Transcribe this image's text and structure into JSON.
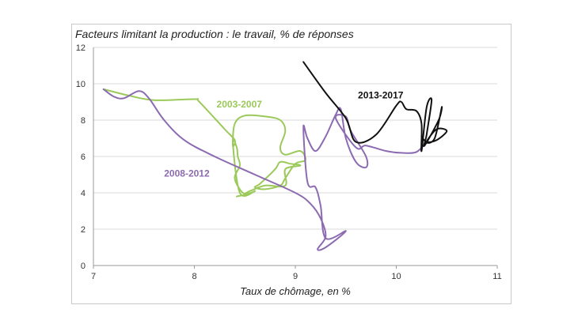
{
  "chart_data": {
    "type": "line",
    "title": "Facteurs limitant la production : le travail, % de réponses",
    "xlabel": "Taux de chômage, en %",
    "ylabel": "",
    "xlim": [
      7,
      11
    ],
    "ylim": [
      0,
      12
    ],
    "xticks": [
      "7",
      "8",
      "9",
      "10",
      "11"
    ],
    "yticks": [
      "0",
      "2",
      "4",
      "6",
      "8",
      "10",
      "12"
    ],
    "grid": "horizontal",
    "legend": "none",
    "colors": {
      "2003-2007": "#9bc95a",
      "2008-2012": "#8c6bb1",
      "2013-2017": "#111111"
    },
    "series": [
      {
        "name": "2003-2007",
        "label_at": [
          8.22,
          8.7
        ],
        "points": [
          [
            7.1,
            9.7
          ],
          [
            7.35,
            9.35
          ],
          [
            7.6,
            9.1
          ],
          [
            8.0,
            9.15
          ],
          [
            8.05,
            9.0
          ],
          [
            8.3,
            7.5
          ],
          [
            8.4,
            6.9
          ],
          [
            8.38,
            6.6
          ],
          [
            8.4,
            7.8
          ],
          [
            8.5,
            8.25
          ],
          [
            8.7,
            8.2
          ],
          [
            8.85,
            8.0
          ],
          [
            8.9,
            7.4
          ],
          [
            8.85,
            6.5
          ],
          [
            8.9,
            6.1
          ],
          [
            9.05,
            6.3
          ],
          [
            9.1,
            5.8
          ],
          [
            9.0,
            5.6
          ],
          [
            8.9,
            4.8
          ],
          [
            8.85,
            4.4
          ],
          [
            8.7,
            4.2
          ],
          [
            8.6,
            4.3
          ],
          [
            8.65,
            4.5
          ],
          [
            8.8,
            5.3
          ],
          [
            8.85,
            5.7
          ],
          [
            8.95,
            5.6
          ],
          [
            9.05,
            5.5
          ],
          [
            8.9,
            5.3
          ],
          [
            8.9,
            4.4
          ],
          [
            8.7,
            4.4
          ],
          [
            8.55,
            4.1
          ],
          [
            8.48,
            4.0
          ],
          [
            8.4,
            4.8
          ],
          [
            8.45,
            5.5
          ],
          [
            8.43,
            6.0
          ],
          [
            8.42,
            6.5
          ],
          [
            8.38,
            6.8
          ],
          [
            8.45,
            4.0
          ],
          [
            8.6,
            4.1
          ],
          [
            8.5,
            3.9
          ],
          [
            8.42,
            3.8
          ]
        ]
      },
      {
        "name": "2008-2012",
        "label_at": [
          7.7,
          4.9
        ],
        "points": [
          [
            7.1,
            9.7
          ],
          [
            7.2,
            9.3
          ],
          [
            7.3,
            9.2
          ],
          [
            7.45,
            9.6
          ],
          [
            7.55,
            9.2
          ],
          [
            7.7,
            8.0
          ],
          [
            7.9,
            6.9
          ],
          [
            8.2,
            6.0
          ],
          [
            8.6,
            5.0
          ],
          [
            9.0,
            4.0
          ],
          [
            9.15,
            3.4
          ],
          [
            9.25,
            2.6
          ],
          [
            9.3,
            1.6
          ],
          [
            9.22,
            0.9
          ],
          [
            9.3,
            1.0
          ],
          [
            9.5,
            1.9
          ],
          [
            9.3,
            1.5
          ],
          [
            9.25,
            3.3
          ],
          [
            9.2,
            4.3
          ],
          [
            9.12,
            4.6
          ],
          [
            9.08,
            7.6
          ],
          [
            9.12,
            7.0
          ],
          [
            9.2,
            6.3
          ],
          [
            9.3,
            7.1
          ],
          [
            9.4,
            8.3
          ],
          [
            9.45,
            8.6
          ],
          [
            9.5,
            7.0
          ],
          [
            9.6,
            5.7
          ],
          [
            9.7,
            5.4
          ],
          [
            9.7,
            6.0
          ],
          [
            9.55,
            7.4
          ],
          [
            9.5,
            8.2
          ],
          [
            9.4,
            8.1
          ],
          [
            9.6,
            6.5
          ],
          [
            9.7,
            6.6
          ],
          [
            9.9,
            6.3
          ],
          [
            10.05,
            6.2
          ],
          [
            10.2,
            6.25
          ],
          [
            10.3,
            6.8
          ]
        ]
      },
      {
        "name": "2013-2017",
        "label_at": [
          9.62,
          9.2
        ],
        "points": [
          [
            9.08,
            11.2
          ],
          [
            9.3,
            9.5
          ],
          [
            9.5,
            8.1
          ],
          [
            9.6,
            6.8
          ],
          [
            9.8,
            7.2
          ],
          [
            10.0,
            8.8
          ],
          [
            10.05,
            9.0
          ],
          [
            10.1,
            8.6
          ],
          [
            10.2,
            8.5
          ],
          [
            10.25,
            7.8
          ],
          [
            10.25,
            6.3
          ],
          [
            10.3,
            8.7
          ],
          [
            10.35,
            9.1
          ],
          [
            10.3,
            7.2
          ],
          [
            10.28,
            6.6
          ],
          [
            10.42,
            8.0
          ],
          [
            10.45,
            8.7
          ],
          [
            10.38,
            7.0
          ],
          [
            10.3,
            6.8
          ],
          [
            10.4,
            7.5
          ],
          [
            10.5,
            7.4
          ],
          [
            10.4,
            6.9
          ],
          [
            10.3,
            6.8
          ],
          [
            10.25,
            7.1
          ]
        ]
      }
    ]
  }
}
